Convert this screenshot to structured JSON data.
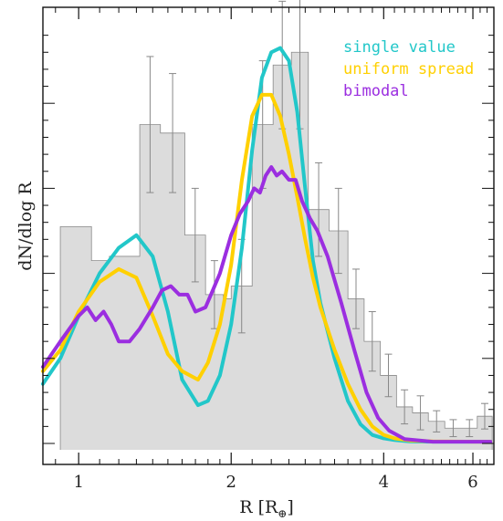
{
  "chart_data": {
    "type": "histogram-with-lines",
    "xlabel": "R [R⊕]",
    "ylabel": "dN/dlog R",
    "xscale": "log",
    "xlim": [
      0.85,
      6.6
    ],
    "ylim": [
      0,
      1.0
    ],
    "x_ticks": [
      1,
      2,
      4,
      6
    ],
    "x_tick_labels": [
      "1",
      "2",
      "4",
      "6"
    ],
    "grid": false,
    "legend_position": "top-right",
    "histogram": {
      "color": "#dcdcdc",
      "edges": [
        0.92,
        1.06,
        1.15,
        1.32,
        1.45,
        1.62,
        1.78,
        1.93,
        2.0,
        2.2,
        2.42,
        2.63,
        2.84,
        3.12,
        3.4,
        3.66,
        3.94,
        4.24,
        4.56,
        4.9,
        5.28,
        5.7,
        6.12,
        6.55
      ],
      "heights": [
        0.51,
        0.43,
        0.44,
        0.75,
        0.73,
        0.49,
        0.35,
        0.34,
        0.37,
        0.75,
        0.89,
        0.92,
        0.55,
        0.5,
        0.34,
        0.24,
        0.16,
        0.086,
        0.072,
        0.052,
        0.036,
        0.036,
        0.064
      ],
      "errors": [
        null,
        null,
        null,
        0.16,
        0.14,
        0.11,
        0.08,
        null,
        0.11,
        0.15,
        0.15,
        0.18,
        0.11,
        0.1,
        0.07,
        0.07,
        0.05,
        0.04,
        0.04,
        0.025,
        0.02,
        0.02,
        0.03
      ]
    },
    "series": [
      {
        "name": "single value",
        "color": "#22c7c9",
        "x": [
          0.85,
          0.92,
          1.0,
          1.1,
          1.2,
          1.3,
          1.4,
          1.5,
          1.6,
          1.72,
          1.8,
          1.9,
          2.0,
          2.1,
          2.2,
          2.3,
          2.4,
          2.5,
          2.6,
          2.7,
          2.8,
          2.9,
          3.0,
          3.2,
          3.4,
          3.6,
          3.8,
          4.0,
          4.2,
          4.5,
          5.0,
          6.0,
          6.5
        ],
        "y": [
          0.14,
          0.2,
          0.3,
          0.4,
          0.46,
          0.49,
          0.44,
          0.31,
          0.15,
          0.09,
          0.1,
          0.16,
          0.28,
          0.46,
          0.69,
          0.86,
          0.92,
          0.93,
          0.9,
          0.78,
          0.6,
          0.43,
          0.33,
          0.2,
          0.1,
          0.045,
          0.02,
          0.012,
          0.008,
          0.005,
          0.004,
          0.004,
          0.004
        ]
      },
      {
        "name": "uniform spread",
        "color": "#ffd000",
        "x": [
          0.85,
          0.92,
          1.0,
          1.1,
          1.2,
          1.3,
          1.4,
          1.5,
          1.6,
          1.72,
          1.8,
          1.9,
          2.0,
          2.1,
          2.2,
          2.3,
          2.4,
          2.5,
          2.6,
          2.7,
          2.8,
          2.9,
          3.0,
          3.2,
          3.4,
          3.6,
          3.8,
          4.0,
          4.2,
          4.5,
          5.0,
          6.0,
          6.5
        ],
        "y": [
          0.17,
          0.22,
          0.31,
          0.38,
          0.41,
          0.39,
          0.3,
          0.21,
          0.17,
          0.15,
          0.19,
          0.28,
          0.42,
          0.62,
          0.77,
          0.82,
          0.82,
          0.77,
          0.68,
          0.58,
          0.48,
          0.39,
          0.32,
          0.22,
          0.14,
          0.08,
          0.04,
          0.02,
          0.012,
          0.007,
          0.005,
          0.004,
          0.004
        ]
      },
      {
        "name": "bimodal",
        "color": "#9b2ee0",
        "x": [
          0.85,
          0.92,
          1.0,
          1.04,
          1.08,
          1.12,
          1.16,
          1.2,
          1.26,
          1.32,
          1.4,
          1.46,
          1.52,
          1.58,
          1.64,
          1.7,
          1.78,
          1.84,
          1.9,
          2.0,
          2.08,
          2.16,
          2.22,
          2.28,
          2.34,
          2.4,
          2.46,
          2.52,
          2.6,
          2.68,
          2.76,
          2.86,
          2.96,
          3.1,
          3.3,
          3.5,
          3.7,
          3.9,
          4.1,
          4.4,
          5.0,
          6.0,
          6.5
        ],
        "y": [
          0.18,
          0.24,
          0.3,
          0.32,
          0.29,
          0.31,
          0.28,
          0.24,
          0.24,
          0.27,
          0.32,
          0.36,
          0.37,
          0.35,
          0.35,
          0.31,
          0.32,
          0.36,
          0.4,
          0.49,
          0.54,
          0.57,
          0.6,
          0.59,
          0.63,
          0.65,
          0.63,
          0.64,
          0.62,
          0.62,
          0.57,
          0.53,
          0.5,
          0.44,
          0.33,
          0.22,
          0.12,
          0.06,
          0.03,
          0.01,
          0.004,
          0.004,
          0.004
        ]
      }
    ],
    "colors": {
      "axis": "#111111",
      "errorbar": "#888888",
      "hist_edge": "#8a8a8a"
    }
  }
}
